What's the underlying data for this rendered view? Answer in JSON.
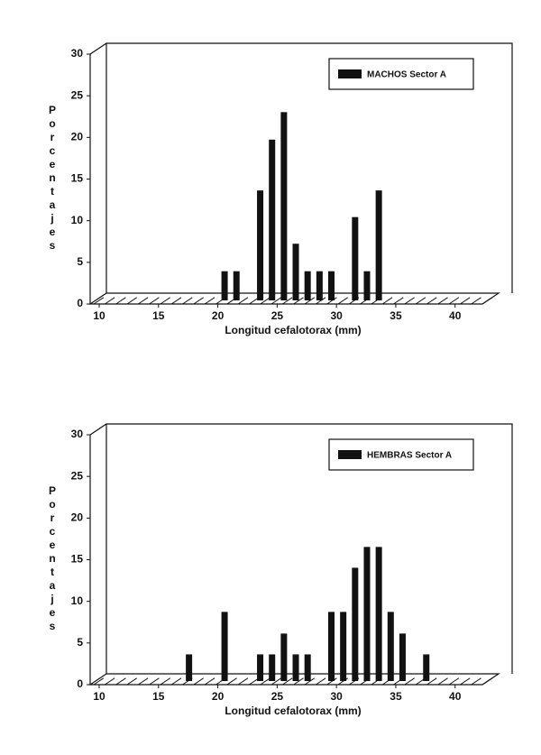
{
  "chart_data": [
    {
      "type": "bar",
      "xlabel": "Longitud cefalotorax (mm)",
      "ylabel": "Porcentajes",
      "x": [
        20,
        21,
        23,
        24,
        25,
        26,
        27,
        28,
        29,
        31,
        32,
        33
      ],
      "series": [
        {
          "name": "MACHOS Sector A",
          "color": "#111111",
          "values": [
            3.5,
            3.5,
            13.2,
            19.3,
            22.6,
            6.8,
            3.5,
            3.5,
            3.5,
            10,
            3.5,
            13.2
          ]
        }
      ],
      "xlim": [
        10,
        45
      ],
      "xticks": [
        10,
        15,
        20,
        25,
        30,
        35,
        40
      ],
      "ylim": [
        0,
        30
      ],
      "yticks": [
        0,
        5,
        10,
        15,
        20,
        25,
        30
      ],
      "legend": "upper right"
    },
    {
      "type": "bar",
      "xlabel": "Longitud cefalotorax (mm)",
      "ylabel": "Porcentajes",
      "x": [
        17,
        20,
        23,
        24,
        25,
        26,
        27,
        29,
        30,
        31,
        32,
        33,
        34,
        35,
        37
      ],
      "series": [
        {
          "name": "HEMBRAS Sector A",
          "color": "#111111",
          "values": [
            3.2,
            8.3,
            3.2,
            3.2,
            5.7,
            3.2,
            3.2,
            8.3,
            8.3,
            13.6,
            16.1,
            16.1,
            8.3,
            5.7,
            3.2
          ]
        }
      ],
      "xlim": [
        10,
        45
      ],
      "xticks": [
        10,
        15,
        20,
        25,
        30,
        35,
        40
      ],
      "ylim": [
        0,
        30
      ],
      "yticks": [
        0,
        5,
        10,
        15,
        20,
        25,
        30
      ],
      "legend": "upper right"
    }
  ]
}
